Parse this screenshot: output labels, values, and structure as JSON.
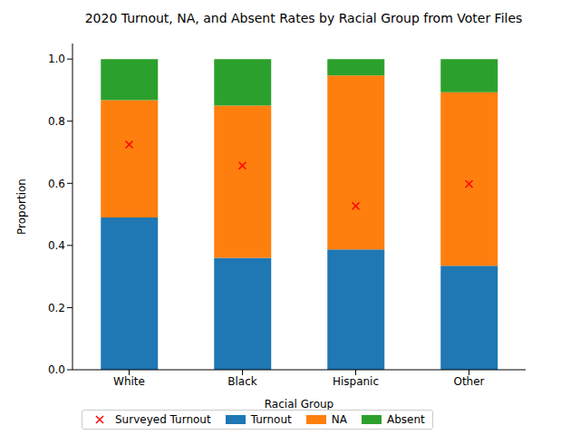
{
  "chart_data": {
    "type": "bar",
    "title": "2020 Turnout, NA, and Absent Rates by Racial Group from Voter Files",
    "x_label": "Racial Group",
    "y_label": "Proportion",
    "categories": [
      "White",
      "Black",
      "Hispanic",
      "Other"
    ],
    "series": [
      {
        "name": "Surveyed Turnout",
        "type": "scatter",
        "marker": "x",
        "color": "#ff0000",
        "values": [
          0.725,
          0.657,
          0.527,
          0.598
        ]
      },
      {
        "name": "Turnout",
        "color": "#1f77b4",
        "values": [
          0.49,
          0.36,
          0.387,
          0.335
        ]
      },
      {
        "name": "NA",
        "color": "#ff7f0e",
        "values": [
          0.378,
          0.49,
          0.56,
          0.558
        ]
      },
      {
        "name": "Absent",
        "color": "#2ca02c",
        "values": [
          0.132,
          0.15,
          0.053,
          0.107
        ]
      }
    ],
    "stacked": true,
    "ylim": [
      0,
      1.05
    ],
    "yticks": [
      {
        "value": 0,
        "label": "0.0"
      },
      {
        "value": 0.2,
        "label": "0.2"
      },
      {
        "value": 0.4,
        "label": "0.4"
      },
      {
        "value": 0.6,
        "label": "0.6"
      },
      {
        "value": 0.8,
        "label": "0.8"
      },
      {
        "value": 1,
        "label": "1.0"
      }
    ],
    "legend": "lower left"
  }
}
